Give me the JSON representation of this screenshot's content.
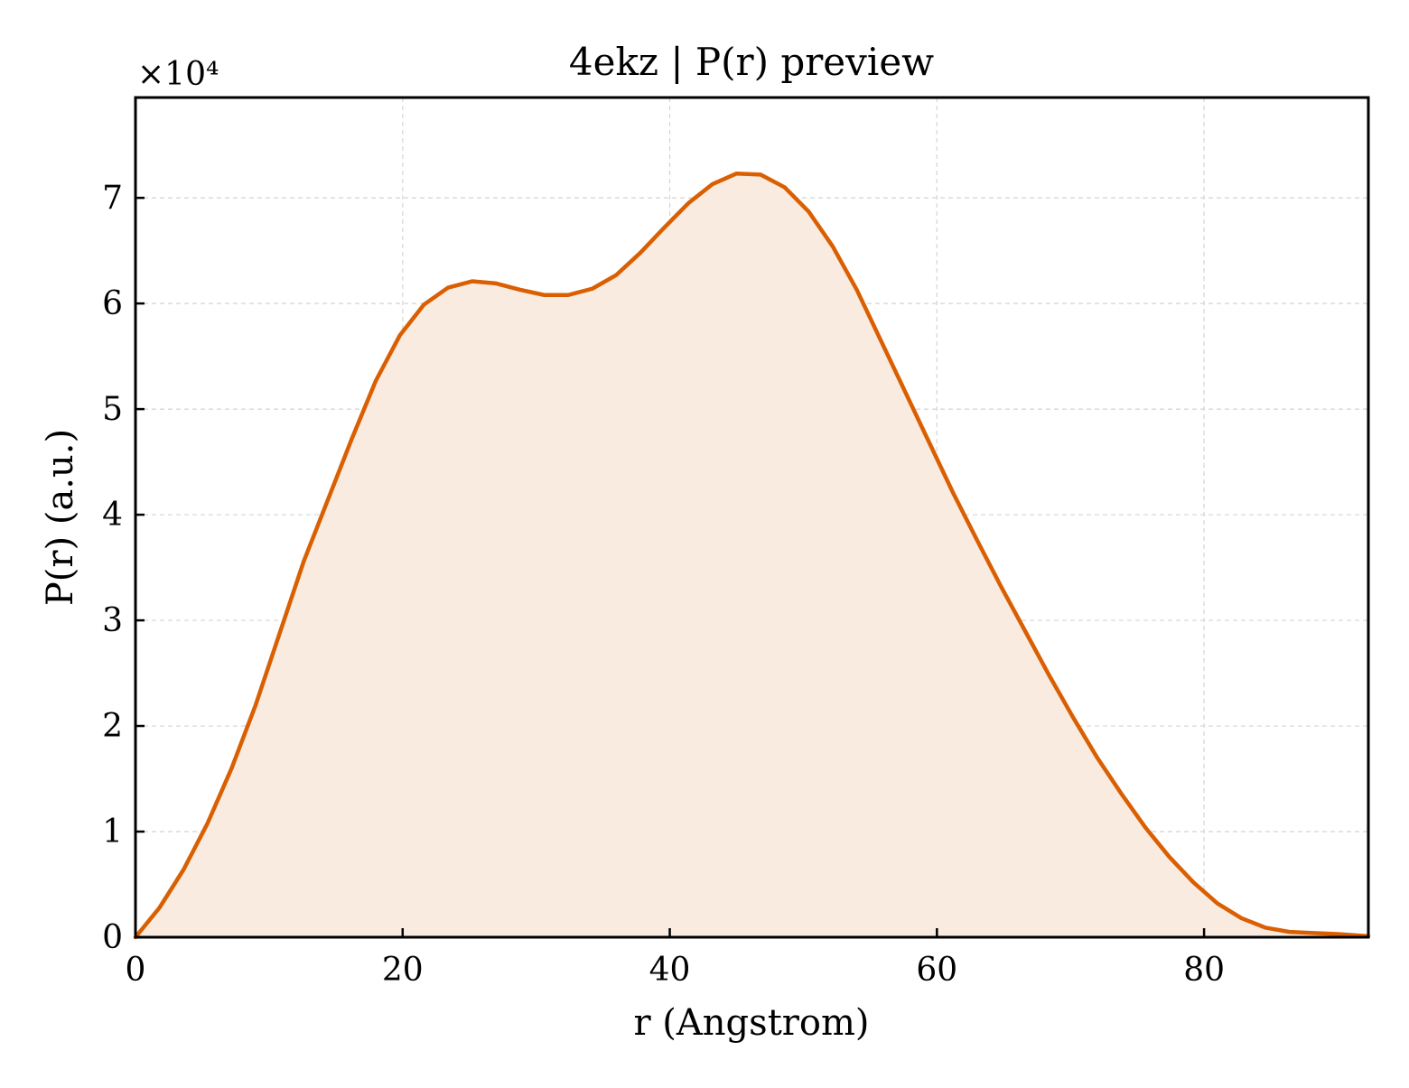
{
  "chart_data": {
    "type": "area",
    "title": "4ekz | P(r) preview",
    "xlabel": "r (Angstrom)",
    "ylabel": "P(r) (a.u.)",
    "y_multiplier": "×10⁴",
    "xlim": [
      0,
      92.3
    ],
    "ylim": [
      0,
      7.95
    ],
    "xticks": [
      0,
      20,
      40,
      60,
      80
    ],
    "yticks": [
      0,
      1,
      2,
      3,
      4,
      5,
      6,
      7
    ],
    "grid": true,
    "line_color": "#d95f02",
    "fill_color": "#f9ebe0",
    "series": [
      {
        "x": [
          0,
          1.8,
          3.6,
          5.4,
          7.2,
          9.0,
          10.8,
          12.6,
          14.4,
          16.2,
          18.0,
          19.8,
          21.6,
          23.4,
          25.2,
          27.0,
          28.8,
          30.6,
          32.4,
          34.2,
          36.0,
          37.8,
          39.6,
          41.4,
          43.2,
          45.0,
          46.8,
          48.6,
          50.4,
          52.2,
          54.0,
          55.8,
          57.6,
          59.4,
          61.2,
          63.0,
          64.8,
          66.6,
          68.4,
          70.2,
          72.0,
          73.8,
          75.6,
          77.4,
          79.2,
          81.0,
          82.8,
          84.6,
          86.4,
          88.2,
          90.0,
          92.3
        ],
        "y": [
          0,
          0.28,
          0.64,
          1.08,
          1.6,
          2.2,
          2.88,
          3.56,
          4.14,
          4.72,
          5.27,
          5.7,
          5.99,
          6.15,
          6.21,
          6.19,
          6.13,
          6.08,
          6.08,
          6.14,
          6.27,
          6.48,
          6.72,
          6.95,
          7.13,
          7.23,
          7.22,
          7.1,
          6.87,
          6.54,
          6.13,
          5.65,
          5.17,
          4.69,
          4.21,
          3.76,
          3.32,
          2.9,
          2.48,
          2.08,
          1.7,
          1.36,
          1.04,
          0.76,
          0.52,
          0.32,
          0.18,
          0.09,
          0.05,
          0.04,
          0.03,
          0.01
        ]
      }
    ]
  }
}
